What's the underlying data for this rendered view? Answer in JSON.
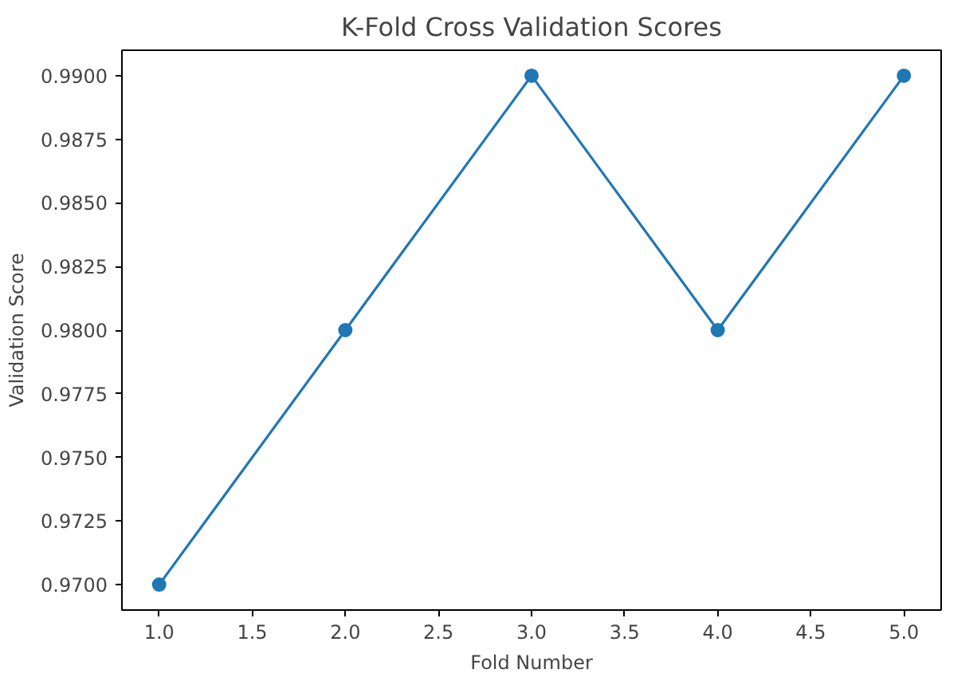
{
  "chart_data": {
    "type": "line",
    "title": "K-Fold Cross Validation Scores",
    "xlabel": "Fold Number",
    "ylabel": "Validation Score",
    "x": [
      1,
      2,
      3,
      4,
      5
    ],
    "series": [
      {
        "color": "#1f77b4",
        "values": [
          0.97,
          0.98,
          0.99,
          0.98,
          0.99
        ]
      }
    ],
    "marker": "circle",
    "line_style": "solid",
    "grid": false,
    "xlim": [
      0.8,
      5.2
    ],
    "ylim": [
      0.969,
      0.991
    ],
    "xticks": [
      {
        "value": 1,
        "label": "1.0"
      },
      {
        "value": 1.5,
        "label": "1.5"
      },
      {
        "value": 2,
        "label": "2.0"
      },
      {
        "value": 2.5,
        "label": "2.5"
      },
      {
        "value": 3,
        "label": "3.0"
      },
      {
        "value": 3.5,
        "label": "3.5"
      },
      {
        "value": 4,
        "label": "4.0"
      },
      {
        "value": 4.5,
        "label": "4.5"
      },
      {
        "value": 5,
        "label": "5.0"
      }
    ],
    "yticks": [
      {
        "value": 0.97,
        "label": "0.9700"
      },
      {
        "value": 0.9725,
        "label": "0.9725"
      },
      {
        "value": 0.975,
        "label": "0.9750"
      },
      {
        "value": 0.9775,
        "label": "0.9775"
      },
      {
        "value": 0.98,
        "label": "0.9800"
      },
      {
        "value": 0.9825,
        "label": "0.9825"
      },
      {
        "value": 0.985,
        "label": "0.9850"
      },
      {
        "value": 0.9875,
        "label": "0.9875"
      },
      {
        "value": 0.99,
        "label": "0.9900"
      }
    ]
  }
}
